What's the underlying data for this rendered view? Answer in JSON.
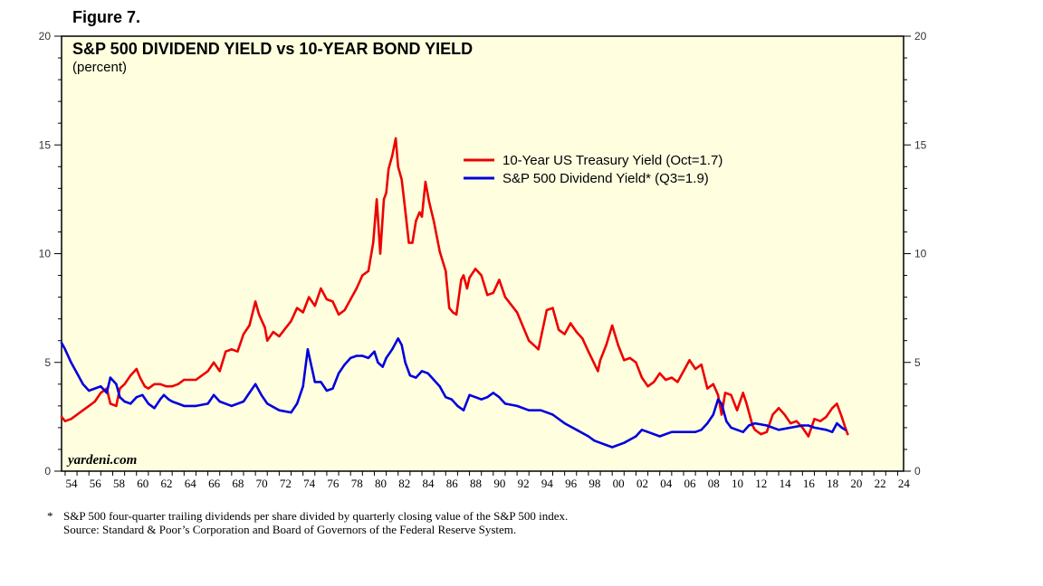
{
  "figure_label": "Figure 7.",
  "footnote": {
    "marker": "*",
    "line1": "S&P 500 four-quarter trailing dividends per share divided by quarterly closing value of the S&P 500 index.",
    "line2": "Source: Standard & Poor’s Corporation and Board of Governors of the Federal Reserve System."
  },
  "chart_data": {
    "type": "line",
    "title": "S&P 500 DIVIDEND YIELD vs 10-YEAR BOND YIELD",
    "subtitle": "(percent)",
    "credit": "yardeni.com",
    "ylim": [
      0,
      20
    ],
    "xlim": [
      1953.7,
      2024.5
    ],
    "y_ticks": [
      "0",
      "5",
      "10",
      "15",
      "20"
    ],
    "x_ticks": [
      "54",
      "56",
      "58",
      "60",
      "62",
      "64",
      "66",
      "68",
      "70",
      "72",
      "74",
      "76",
      "78",
      "80",
      "82",
      "84",
      "86",
      "88",
      "90",
      "92",
      "94",
      "96",
      "98",
      "00",
      "02",
      "04",
      "06",
      "08",
      "10",
      "12",
      "14",
      "16",
      "18",
      "20",
      "22",
      "24"
    ],
    "colors": {
      "plot_bg": "#ffffe0",
      "treasury": "#ee0000",
      "dividend": "#0000dd"
    },
    "series": [
      {
        "name": "10-Year US Treasury Yield (Oct=1.7)",
        "color": "#ee0000",
        "x": [
          1953.7,
          1954.0,
          1954.5,
          1955.0,
          1955.5,
          1956.0,
          1956.5,
          1957.0,
          1957.5,
          1957.8,
          1958.3,
          1958.6,
          1959.0,
          1959.5,
          1960.0,
          1960.3,
          1960.7,
          1961.0,
          1961.5,
          1962.0,
          1962.5,
          1963.0,
          1963.5,
          1964.0,
          1965.0,
          1966.0,
          1966.5,
          1967.0,
          1967.5,
          1968.0,
          1968.5,
          1969.0,
          1969.5,
          1970.0,
          1970.3,
          1970.8,
          1971.0,
          1971.5,
          1972.0,
          1973.0,
          1973.5,
          1974.0,
          1974.5,
          1975.0,
          1975.5,
          1976.0,
          1976.5,
          1977.0,
          1977.5,
          1978.0,
          1978.5,
          1979.0,
          1979.5,
          1979.9,
          1980.2,
          1980.5,
          1980.8,
          1981.0,
          1981.2,
          1981.5,
          1981.8,
          1982.0,
          1982.3,
          1982.6,
          1982.9,
          1983.2,
          1983.5,
          1983.8,
          1984.0,
          1984.3,
          1984.6,
          1985.0,
          1985.5,
          1986.0,
          1986.3,
          1986.6,
          1986.9,
          1987.3,
          1987.5,
          1987.8,
          1988.0,
          1988.5,
          1989.0,
          1989.5,
          1990.0,
          1990.5,
          1991.0,
          1992.0,
          1993.0,
          1993.8,
          1994.5,
          1995.0,
          1995.5,
          1996.0,
          1996.5,
          1997.0,
          1997.5,
          1998.0,
          1998.8,
          1999.0,
          1999.5,
          2000.0,
          2000.5,
          2001.0,
          2001.5,
          2002.0,
          2002.5,
          2003.0,
          2003.5,
          2004.0,
          2004.5,
          2005.0,
          2005.5,
          2006.0,
          2006.5,
          2007.0,
          2007.5,
          2008.0,
          2008.5,
          2008.9,
          2009.2,
          2009.5,
          2010.0,
          2010.5,
          2011.0,
          2011.3,
          2011.8,
          2012.0,
          2012.5,
          2013.0,
          2013.5,
          2014.0,
          2014.5,
          2015.0,
          2015.5,
          2016.0,
          2016.5,
          2017.0,
          2017.5,
          2018.0,
          2018.5,
          2018.9,
          2019.3,
          2019.6,
          2019.8
        ],
        "values": [
          2.5,
          2.3,
          2.4,
          2.6,
          2.8,
          3.0,
          3.2,
          3.6,
          3.8,
          3.1,
          3.0,
          3.8,
          4.0,
          4.4,
          4.7,
          4.3,
          3.9,
          3.8,
          4.0,
          4.0,
          3.9,
          3.9,
          4.0,
          4.2,
          4.2,
          4.6,
          5.0,
          4.6,
          5.5,
          5.6,
          5.5,
          6.3,
          6.7,
          7.8,
          7.2,
          6.6,
          6.0,
          6.4,
          6.2,
          6.9,
          7.5,
          7.3,
          8.0,
          7.6,
          8.4,
          7.9,
          7.8,
          7.2,
          7.4,
          7.9,
          8.4,
          9.0,
          9.2,
          10.5,
          12.5,
          10.0,
          12.5,
          12.8,
          13.9,
          14.5,
          15.3,
          14.0,
          13.4,
          12.0,
          10.5,
          10.5,
          11.5,
          11.9,
          11.7,
          13.3,
          12.4,
          11.5,
          10.1,
          9.2,
          7.5,
          7.3,
          7.2,
          8.8,
          9.0,
          8.4,
          8.9,
          9.3,
          9.0,
          8.1,
          8.2,
          8.8,
          8.0,
          7.3,
          6.0,
          5.6,
          7.4,
          7.5,
          6.5,
          6.3,
          6.8,
          6.4,
          6.1,
          5.5,
          4.6,
          5.1,
          5.8,
          6.7,
          5.8,
          5.1,
          5.2,
          5.0,
          4.3,
          3.9,
          4.1,
          4.5,
          4.2,
          4.3,
          4.1,
          4.6,
          5.1,
          4.7,
          4.9,
          3.8,
          4.0,
          3.5,
          2.6,
          3.6,
          3.5,
          2.8,
          3.6,
          3.1,
          2.1,
          1.9,
          1.7,
          1.8,
          2.6,
          2.9,
          2.6,
          2.2,
          2.3,
          2.0,
          1.6,
          2.4,
          2.3,
          2.5,
          2.9,
          3.1,
          2.5,
          2.0,
          1.7
        ]
      },
      {
        "name": "S&P 500 Dividend Yield* (Q3=1.9)",
        "color": "#0000dd",
        "x": [
          1953.7,
          1954.0,
          1954.5,
          1955.0,
          1955.5,
          1956.0,
          1956.5,
          1957.0,
          1957.5,
          1957.8,
          1958.3,
          1958.6,
          1959.0,
          1959.5,
          1960.0,
          1960.5,
          1961.0,
          1961.5,
          1962.0,
          1962.3,
          1962.7,
          1963.0,
          1963.5,
          1964.0,
          1965.0,
          1966.0,
          1966.5,
          1967.0,
          1968.0,
          1969.0,
          1969.5,
          1970.0,
          1970.5,
          1971.0,
          1972.0,
          1973.0,
          1973.5,
          1974.0,
          1974.4,
          1974.8,
          1975.0,
          1975.5,
          1976.0,
          1976.5,
          1977.0,
          1977.5,
          1978.0,
          1978.5,
          1979.0,
          1979.5,
          1980.0,
          1980.3,
          1980.7,
          1981.0,
          1981.5,
          1982.0,
          1982.3,
          1982.6,
          1983.0,
          1983.5,
          1984.0,
          1984.5,
          1985.0,
          1985.5,
          1986.0,
          1986.5,
          1987.0,
          1987.5,
          1988.0,
          1988.5,
          1989.0,
          1989.5,
          1990.0,
          1990.5,
          1991.0,
          1992.0,
          1993.0,
          1994.0,
          1995.0,
          1996.0,
          1997.0,
          1998.0,
          1998.5,
          1999.0,
          1999.5,
          2000.0,
          2001.0,
          2002.0,
          2002.5,
          2003.0,
          2004.0,
          2005.0,
          2006.0,
          2007.0,
          2007.5,
          2008.0,
          2008.5,
          2008.9,
          2009.2,
          2009.6,
          2010.0,
          2010.5,
          2011.0,
          2011.5,
          2012.0,
          2013.0,
          2014.0,
          2015.0,
          2016.0,
          2016.5,
          2017.0,
          2018.0,
          2018.5,
          2018.9,
          2019.3,
          2019.6
        ],
        "values": [
          5.9,
          5.6,
          5.0,
          4.5,
          4.0,
          3.7,
          3.8,
          3.9,
          3.6,
          4.3,
          4.0,
          3.4,
          3.2,
          3.1,
          3.4,
          3.5,
          3.1,
          2.9,
          3.3,
          3.5,
          3.3,
          3.2,
          3.1,
          3.0,
          3.0,
          3.1,
          3.5,
          3.2,
          3.0,
          3.2,
          3.6,
          4.0,
          3.5,
          3.1,
          2.8,
          2.7,
          3.1,
          3.9,
          5.6,
          4.6,
          4.1,
          4.1,
          3.7,
          3.8,
          4.5,
          4.9,
          5.2,
          5.3,
          5.3,
          5.2,
          5.5,
          5.0,
          4.8,
          5.2,
          5.6,
          6.1,
          5.8,
          5.0,
          4.4,
          4.3,
          4.6,
          4.5,
          4.2,
          3.9,
          3.4,
          3.3,
          3.0,
          2.8,
          3.5,
          3.4,
          3.3,
          3.4,
          3.6,
          3.4,
          3.1,
          3.0,
          2.8,
          2.8,
          2.6,
          2.2,
          1.9,
          1.6,
          1.4,
          1.3,
          1.2,
          1.1,
          1.3,
          1.6,
          1.9,
          1.8,
          1.6,
          1.8,
          1.8,
          1.8,
          1.9,
          2.2,
          2.6,
          3.3,
          3.1,
          2.3,
          2.0,
          1.9,
          1.8,
          2.1,
          2.2,
          2.1,
          1.9,
          2.0,
          2.1,
          2.1,
          2.0,
          1.9,
          1.8,
          2.2,
          2.0,
          1.9
        ]
      }
    ]
  }
}
